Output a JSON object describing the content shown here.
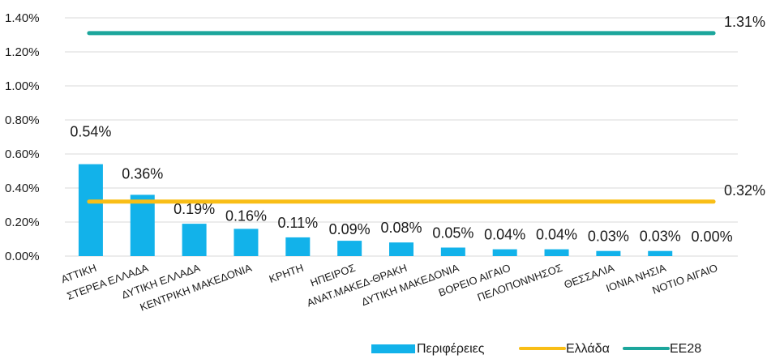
{
  "chart_data": {
    "type": "bar",
    "categories": [
      "ΑΤΤΙΚΗ",
      "ΣΤΕΡΕΑ ΕΛΛΑΔΑ",
      "ΔΥΤΙΚΗ ΕΛΛΑΔΑ",
      "ΚΕΝΤΡΙΚΗ ΜΑΚΕΔΟΝΙΑ",
      "ΚΡΗΤΗ",
      "ΗΠΕΙΡΟΣ",
      "ΑΝΑΤ.ΜΑΚΕΔ-ΘΡΑΚΗ",
      "ΔΥΤΙΚΗ ΜΑΚΕΔΟΝΙΑ",
      "ΒΟΡΕΙΟ ΑΙΓΑΙΟ",
      "ΠΕΛΟΠΟΝΝΗΣΟΣ",
      "ΘΕΣΣΑΛΙΑ",
      "ΙΟΝΙΑ ΝΗΣΙΑ",
      "ΝΟΤΙΟ ΑΙΓΑΙΟ"
    ],
    "series": [
      {
        "name": "Περιφέρειες",
        "kind": "bar",
        "color": "#12B2EA",
        "values": [
          0.54,
          0.36,
          0.19,
          0.16,
          0.11,
          0.09,
          0.08,
          0.05,
          0.04,
          0.04,
          0.03,
          0.03,
          0.0
        ],
        "labels": [
          "0.54%",
          "0.36%",
          "0.19%",
          "0.16%",
          "0.11%",
          "0.09%",
          "0.08%",
          "0.05%",
          "0.04%",
          "0.04%",
          "0.03%",
          "0.03%",
          "0.00%"
        ]
      },
      {
        "name": "Ελλάδα",
        "kind": "line",
        "color": "#F9BE16",
        "values": [
          0.32,
          0.32,
          0.32,
          0.32,
          0.32,
          0.32,
          0.32,
          0.32,
          0.32,
          0.32,
          0.32,
          0.32,
          0.32
        ],
        "end_label": "0.32%"
      },
      {
        "name": "ΕΕ28",
        "kind": "line",
        "color": "#1CA69C",
        "values": [
          1.31,
          1.31,
          1.31,
          1.31,
          1.31,
          1.31,
          1.31,
          1.31,
          1.31,
          1.31,
          1.31,
          1.31,
          1.31
        ],
        "end_label": "1.31%"
      }
    ],
    "ylim": [
      0,
      1.4
    ],
    "y_ticks": [
      "0.00%",
      "0.20%",
      "0.40%",
      "0.60%",
      "0.80%",
      "1.00%",
      "1.20%",
      "1.40%"
    ],
    "grid": true,
    "legend_position": "bottom-right",
    "category_label_rotation": "rotated"
  }
}
